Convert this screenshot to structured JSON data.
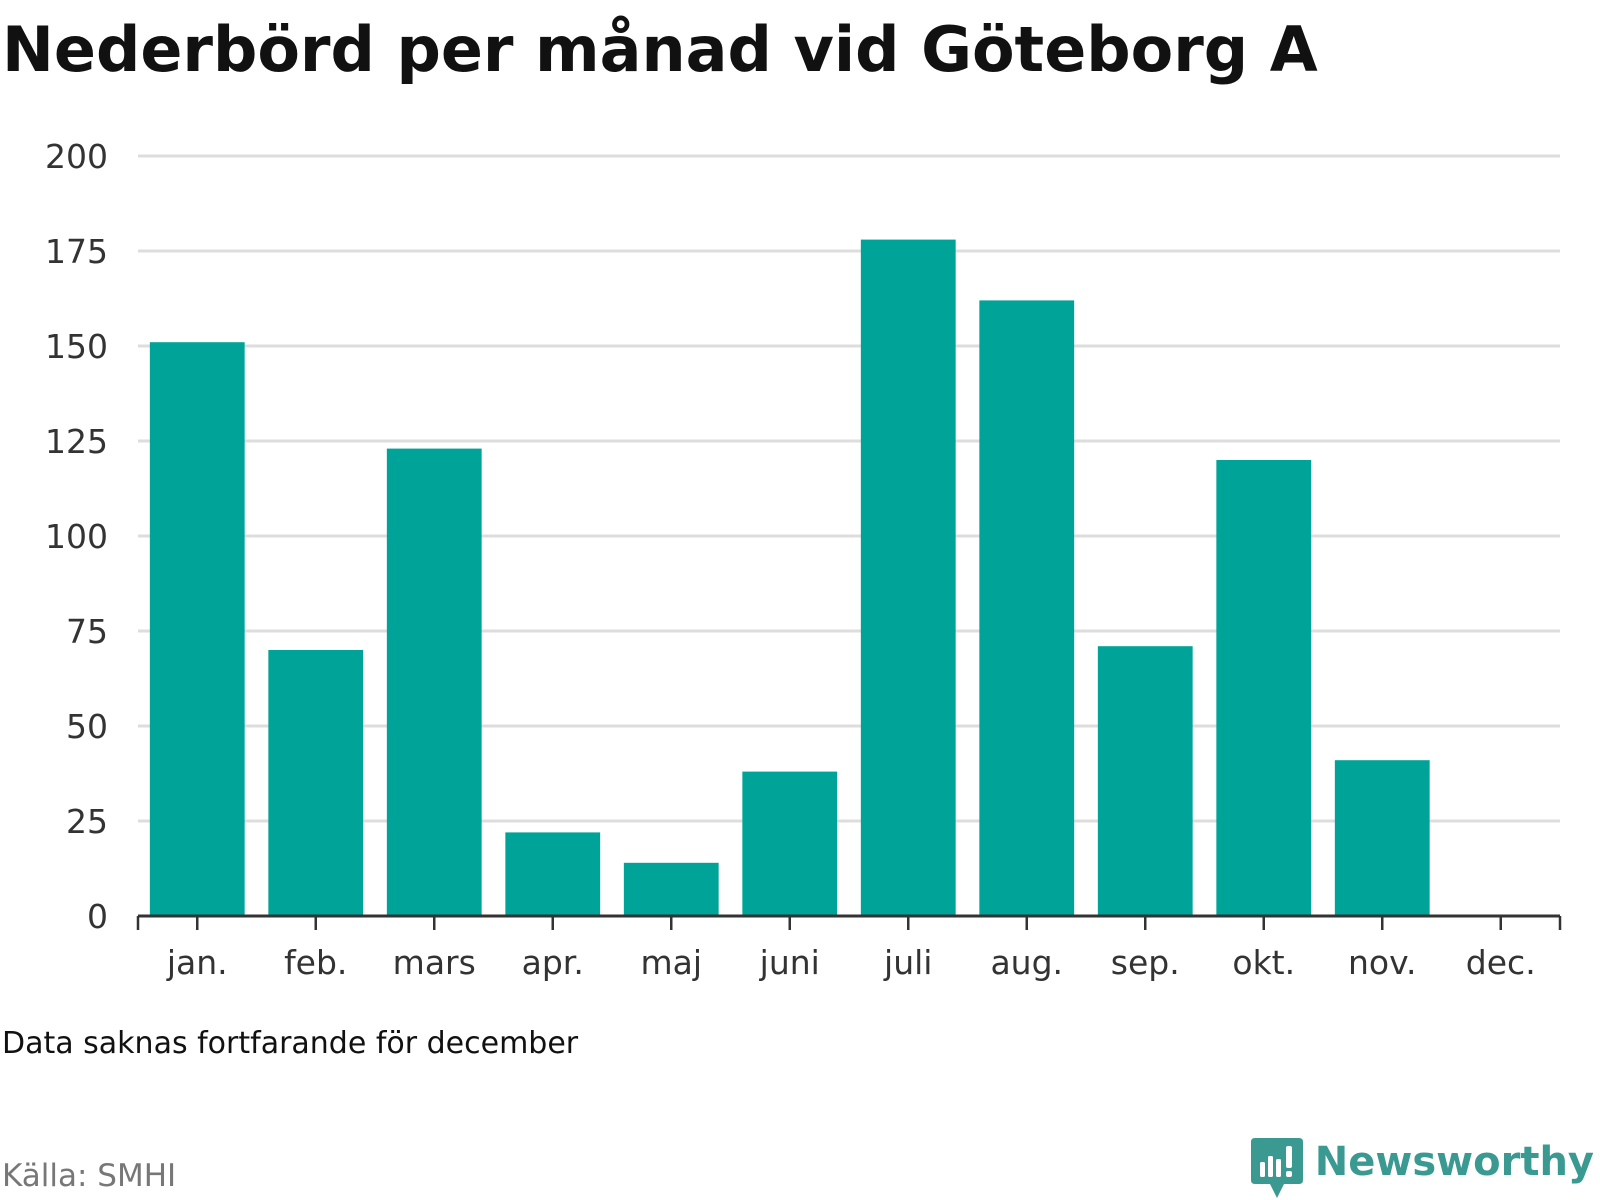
{
  "title": "Nederbörd per månad vid Göteborg A",
  "note": "Data saknas fortfarande för december",
  "source": "Källa: SMHI",
  "brand": {
    "name": "Newsworthy",
    "icon": "newsworthy-logo-icon",
    "color": "#3a9991"
  },
  "colors": {
    "bar": "#00a398",
    "grid": "#dddddd",
    "axis": "#333333",
    "tick_text": "#333333"
  },
  "chart_data": {
    "type": "bar",
    "title": "Nederbörd per månad vid Göteborg A",
    "categories": [
      "jan.",
      "feb.",
      "mars",
      "apr.",
      "maj",
      "juni",
      "juli",
      "aug.",
      "sep.",
      "okt.",
      "nov.",
      "dec."
    ],
    "values": [
      151,
      70,
      123,
      22,
      14,
      38,
      178,
      162,
      71,
      120,
      41,
      null
    ],
    "ylim": [
      0,
      200
    ],
    "yticks": [
      0,
      25,
      50,
      75,
      100,
      125,
      150,
      175,
      200
    ],
    "grid": true,
    "xlabel": "",
    "ylabel": ""
  }
}
